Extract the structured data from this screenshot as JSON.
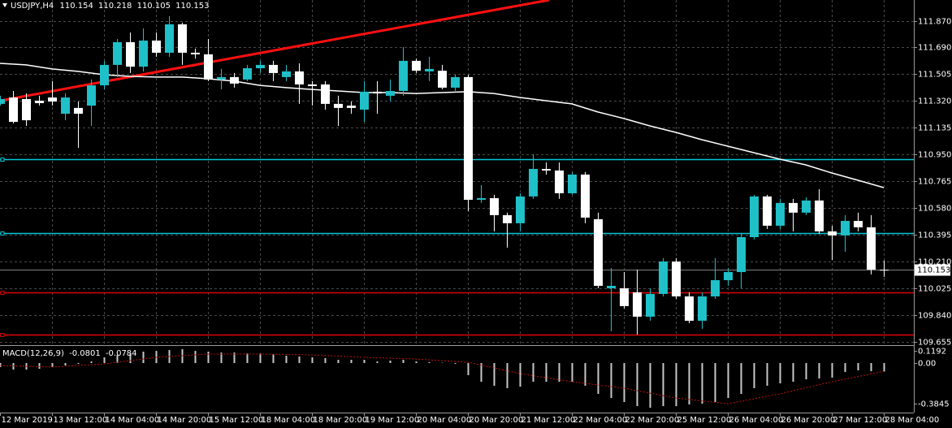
{
  "chart_data": {
    "type": "candlestick",
    "title": "USDJPY,H4",
    "bull_color": "#1fc0c8",
    "bear_color": "#ffffff",
    "grid": true,
    "open": [
      111.299,
      111.343,
      111.332,
      111.321,
      111.343,
      111.231,
      111.271,
      111.287,
      111.427,
      111.568,
      111.725,
      111.556,
      111.736,
      111.652,
      111.848,
      111.652,
      111.641,
      111.467,
      111.484,
      111.467,
      111.545,
      111.568,
      111.484,
      111.523,
      111.433,
      111.433,
      111.299,
      111.287,
      111.259,
      111.383,
      111.355,
      111.388,
      111.596,
      111.523,
      111.528,
      111.411,
      111.484,
      110.637,
      110.648,
      110.531,
      110.475,
      110.66,
      110.85,
      110.839,
      110.682,
      110.811,
      110.503,
      110.026,
      110.026,
      109.998,
      109.83,
      109.987,
      110.211,
      109.97,
      109.802,
      109.97,
      110.082,
      110.138,
      110.379,
      110.66,
      110.458,
      110.615,
      110.548,
      110.632,
      110.419,
      110.391,
      110.491,
      110.447,
      110.154
    ],
    "high": [
      111.355,
      111.388,
      111.371,
      111.355,
      111.456,
      111.371,
      111.315,
      111.467,
      111.596,
      111.747,
      111.792,
      111.82,
      111.792,
      111.904,
      111.859,
      111.68,
      111.747,
      111.54,
      111.512,
      111.568,
      111.596,
      111.596,
      111.568,
      111.579,
      111.456,
      111.456,
      111.355,
      111.315,
      111.456,
      111.456,
      111.467,
      111.691,
      111.612,
      111.624,
      111.568,
      111.5,
      111.5,
      110.738,
      110.671,
      110.548,
      110.682,
      110.951,
      110.895,
      110.895,
      110.828,
      110.828,
      110.548,
      110.166,
      110.138,
      110.155,
      110.026,
      110.234,
      110.234,
      109.998,
      109.998,
      110.234,
      110.166,
      110.402,
      110.671,
      110.671,
      110.643,
      110.643,
      110.654,
      110.71,
      110.458,
      110.531,
      110.548,
      110.531,
      110.218
    ],
    "low": [
      111.287,
      111.164,
      111.147,
      111.287,
      111.287,
      111.186,
      110.996,
      111.147,
      111.399,
      111.484,
      111.512,
      111.523,
      111.624,
      111.624,
      111.568,
      111.612,
      111.456,
      111.399,
      111.411,
      111.456,
      111.512,
      111.456,
      111.456,
      111.299,
      111.287,
      111.259,
      111.147,
      111.231,
      111.175,
      111.231,
      111.315,
      111.355,
      111.512,
      111.456,
      111.399,
      111.388,
      110.559,
      110.615,
      110.419,
      110.307,
      110.419,
      110.643,
      110.811,
      110.643,
      110.671,
      110.475,
      110.026,
      109.729,
      109.886,
      109.707,
      109.802,
      109.97,
      109.953,
      109.785,
      109.746,
      109.953,
      110.043,
      110.026,
      110.363,
      110.435,
      110.435,
      110.419,
      110.531,
      110.402,
      110.222,
      110.278,
      110.419,
      110.122,
      110.105
    ],
    "close": [
      111.332,
      111.175,
      111.186,
      111.304,
      111.315,
      111.343,
      111.231,
      111.427,
      111.568,
      111.725,
      111.556,
      111.736,
      111.652,
      111.848,
      111.652,
      111.641,
      111.467,
      111.484,
      111.439,
      111.545,
      111.568,
      111.512,
      111.523,
      111.433,
      111.422,
      111.299,
      111.271,
      111.271,
      111.383,
      111.371,
      111.388,
      111.596,
      111.528,
      111.54,
      111.411,
      111.484,
      110.637,
      110.648,
      110.531,
      110.475,
      110.66,
      110.85,
      110.839,
      110.682,
      110.811,
      110.514,
      110.043,
      110.043,
      109.903,
      109.83,
      109.987,
      110.211,
      109.97,
      109.802,
      109.97,
      110.082,
      110.138,
      110.379,
      110.66,
      110.458,
      110.615,
      110.548,
      110.632,
      110.419,
      110.391,
      110.491,
      110.447,
      110.155,
      110.153
    ],
    "ylim": [
      109.639,
      112.016
    ],
    "yticks": [
      {
        "value": 111.87,
        "label": "111.870"
      },
      {
        "value": 111.69,
        "label": "111.690"
      },
      111.505,
      {
        "value": 111.32,
        "label": "111.320"
      },
      111.135,
      {
        "value": 110.95,
        "label": "110.950"
      },
      110.765,
      {
        "value": 110.58,
        "label": "110.580"
      },
      110.395,
      {
        "value": 110.21,
        "label": "110.210"
      },
      110.025,
      {
        "value": 109.84,
        "label": "109.840"
      },
      109.655
    ],
    "xticks": [
      {
        "value": 0,
        "label": "12 Mar 2019"
      },
      {
        "value": 4,
        "label": "13 Mar 12:00"
      },
      {
        "value": 8,
        "label": "14 Mar 04:00"
      },
      {
        "value": 12,
        "label": "14 Mar 20:00"
      },
      {
        "value": 16,
        "label": "15 Mar 12:00"
      },
      {
        "value": 20,
        "label": "18 Mar 04:00"
      },
      {
        "value": 24,
        "label": "18 Mar 20:00"
      },
      {
        "value": 28,
        "label": "19 Mar 12:00"
      },
      {
        "value": 32,
        "label": "20 Mar 04:00"
      },
      {
        "value": 36,
        "label": "20 Mar 20:00"
      },
      {
        "value": 40,
        "label": "21 Mar 12:00"
      },
      {
        "value": 44,
        "label": "22 Mar 04:00"
      },
      {
        "value": 48,
        "label": "22 Mar 20:00"
      },
      {
        "value": 52,
        "label": "25 Mar 12:00"
      },
      {
        "value": 56,
        "label": "26 Mar 04:00"
      },
      {
        "value": 60,
        "label": "26 Mar 20:00"
      },
      {
        "value": 64,
        "label": "27 Mar 12:00"
      },
      {
        "value": 68,
        "label": "28 Mar 04:00"
      }
    ],
    "ma": {
      "color": "#ffffff",
      "x": [
        0,
        2,
        4,
        6,
        8,
        10,
        12,
        14,
        16,
        18,
        20,
        22,
        24,
        26,
        28,
        30,
        32,
        34,
        36,
        38,
        40,
        42,
        44,
        46,
        48,
        50,
        52,
        54,
        56,
        58,
        60,
        62,
        64,
        66,
        68
      ],
      "values": [
        111.579,
        111.568,
        111.54,
        111.523,
        111.5,
        111.489,
        111.484,
        111.484,
        111.472,
        111.456,
        111.427,
        111.411,
        111.399,
        111.388,
        111.377,
        111.377,
        111.371,
        111.377,
        111.383,
        111.371,
        111.343,
        111.321,
        111.299,
        111.243,
        111.198,
        111.147,
        111.102,
        111.052,
        111.007,
        110.962,
        110.917,
        110.878,
        110.822,
        110.772,
        110.721
      ]
    },
    "trendline": {
      "color": "#ff1010",
      "x": [
        0,
        42.25
      ],
      "values": [
        111.321,
        112.016
      ]
    },
    "levels": [
      {
        "value": 110.917,
        "color": "#00c8d8"
      },
      {
        "value": 110.407,
        "color": "#00c8d8"
      },
      {
        "value": 109.998,
        "color": "#e00000"
      },
      {
        "value": 109.707,
        "color": "#e00000"
      }
    ],
    "macd": {
      "title": "MACD(12,26,9)",
      "ylim": [
        -0.469,
        0.154
      ],
      "yticks": [
        0.1192,
        {
          "value": 0,
          "label": "0.00"
        },
        -0.3845
      ],
      "histogram_color": "#c8c8c8",
      "signal_color": "#c01010",
      "histogram": [
        -0.038,
        -0.062,
        -0.062,
        -0.054,
        -0.038,
        -0.023,
        -0.008,
        0.015,
        0.054,
        0.077,
        0.092,
        0.108,
        0.115,
        0.123,
        0.131,
        0.115,
        0.108,
        0.1,
        0.1,
        0.092,
        0.092,
        0.085,
        0.069,
        0.062,
        0.054,
        0.046,
        0.031,
        0.031,
        0.031,
        0.015,
        0.023,
        0.031,
        0.015,
        0.008,
        0.003,
        -0.008,
        -0.115,
        -0.177,
        -0.215,
        -0.238,
        -0.223,
        -0.177,
        -0.177,
        -0.177,
        -0.177,
        -0.215,
        -0.292,
        -0.331,
        -0.369,
        -0.408,
        -0.423,
        -0.408,
        -0.408,
        -0.392,
        -0.385,
        -0.369,
        -0.331,
        -0.292,
        -0.238,
        -0.215,
        -0.192,
        -0.177,
        -0.154,
        -0.146,
        -0.138,
        -0.085,
        -0.069,
        -0.077,
        -0.0801
      ],
      "signal": {
        "x": [
          0,
          4,
          8,
          12,
          16,
          20,
          24,
          28,
          32,
          36,
          40,
          44,
          48,
          52,
          56,
          60,
          64,
          68
        ],
        "values": [
          -0.023,
          -0.038,
          -0.008,
          0.054,
          0.085,
          0.085,
          0.077,
          0.054,
          0.038,
          0.008,
          -0.1,
          -0.177,
          -0.238,
          -0.331,
          -0.385,
          -0.292,
          -0.177,
          -0.0784
        ]
      }
    }
  }
}
